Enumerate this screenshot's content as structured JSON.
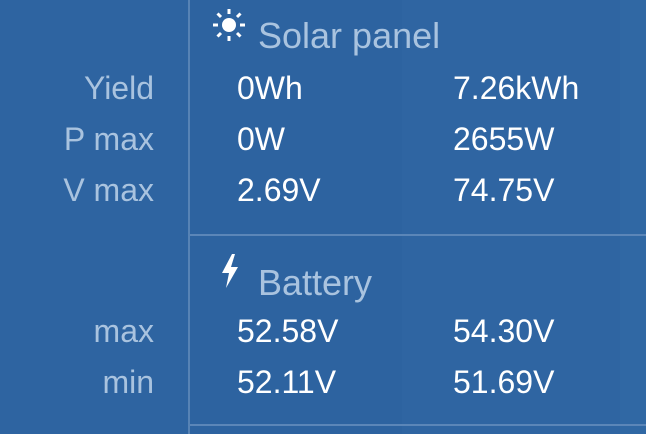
{
  "solar": {
    "title": "Solar panel",
    "icon": "sun-icon",
    "rows": [
      {
        "label": "Yield",
        "today": "0Wh",
        "total": "7.26kWh"
      },
      {
        "label": "P max",
        "today": "0W",
        "total": "2655W"
      },
      {
        "label": "V max",
        "today": "2.69V",
        "total": "74.75V"
      }
    ]
  },
  "battery": {
    "title": "Battery",
    "icon": "lightning-icon",
    "rows": [
      {
        "label": "max",
        "today": "52.58V",
        "total": "54.30V"
      },
      {
        "label": "min",
        "today": "52.11V",
        "total": "51.69V"
      }
    ]
  },
  "colors": {
    "background": "#2d63a0",
    "label": "#a9c3df",
    "value": "#ffffff"
  }
}
